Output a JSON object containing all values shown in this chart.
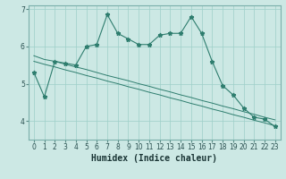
{
  "xlabel": "Humidex (Indice chaleur)",
  "x_values": [
    0,
    1,
    2,
    3,
    4,
    5,
    6,
    7,
    8,
    9,
    10,
    11,
    12,
    13,
    14,
    15,
    16,
    17,
    18,
    19,
    20,
    21,
    22,
    23
  ],
  "line1_y": [
    5.3,
    4.65,
    5.6,
    5.55,
    5.5,
    6.0,
    6.05,
    6.85,
    6.35,
    6.2,
    6.05,
    6.05,
    6.3,
    6.35,
    6.35,
    6.8,
    6.35,
    5.6,
    4.95,
    4.7,
    4.35,
    4.1,
    4.05,
    3.85
  ],
  "line2_y": [
    5.75,
    5.65,
    5.6,
    5.52,
    5.45,
    5.38,
    5.3,
    5.22,
    5.15,
    5.08,
    5.0,
    4.93,
    4.85,
    4.78,
    4.7,
    4.63,
    4.55,
    4.48,
    4.4,
    4.33,
    4.25,
    4.18,
    4.1,
    4.03
  ],
  "line3_y": [
    5.6,
    5.52,
    5.45,
    5.37,
    5.3,
    5.22,
    5.15,
    5.07,
    5.0,
    4.92,
    4.85,
    4.77,
    4.7,
    4.62,
    4.55,
    4.47,
    4.4,
    4.32,
    4.25,
    4.17,
    4.1,
    4.02,
    3.95,
    3.87
  ],
  "line_color": "#2e7d6e",
  "bg_color": "#cce8e4",
  "grid_color": "#9ecfc8",
  "ylim": [
    3.5,
    7.1
  ],
  "yticks": [
    4,
    5,
    6
  ],
  "ytick_extra": 7,
  "xticks": [
    0,
    1,
    2,
    3,
    4,
    5,
    6,
    7,
    8,
    9,
    10,
    11,
    12,
    13,
    14,
    15,
    16,
    17,
    18,
    19,
    20,
    21,
    22,
    23
  ],
  "tick_fontsize": 5.5,
  "xlabel_fontsize": 7.0,
  "marker": "*",
  "marker_size": 3.5
}
